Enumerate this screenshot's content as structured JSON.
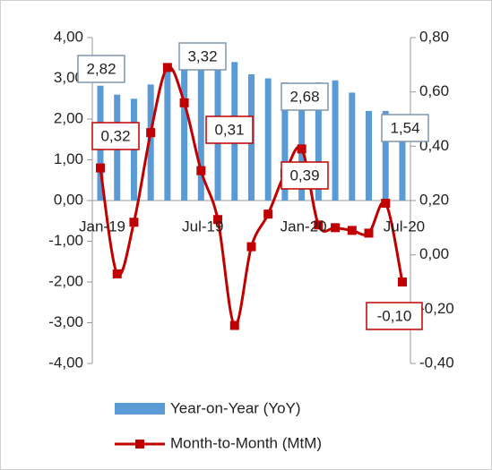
{
  "chart_data": {
    "type": "bar-line",
    "categories": [
      "Jan-19",
      null,
      null,
      null,
      null,
      null,
      "Jul-19",
      null,
      null,
      null,
      null,
      null,
      "Jan-20",
      null,
      null,
      null,
      null,
      null,
      "Jul-20"
    ],
    "series": [
      {
        "name": "Year-on-Year (YoY)",
        "type": "bar",
        "color": "#5b9bd5",
        "values": [
          2.82,
          2.6,
          2.5,
          2.85,
          3.32,
          3.3,
          3.3,
          3.35,
          3.4,
          3.1,
          3.0,
          2.9,
          2.68,
          2.9,
          2.95,
          2.65,
          2.2,
          2.2,
          1.54
        ],
        "value_labels": [
          "2,82",
          null,
          null,
          null,
          "3,32",
          null,
          null,
          null,
          null,
          null,
          null,
          null,
          "2,68",
          null,
          null,
          null,
          null,
          null,
          "1,54"
        ]
      },
      {
        "name": "Month-to-Month (MtM)",
        "type": "line",
        "axis": "y2",
        "color": "#c00000",
        "values": [
          0.32,
          -0.07,
          0.12,
          0.45,
          0.69,
          0.56,
          0.31,
          0.13,
          -0.26,
          0.03,
          0.15,
          0.3,
          0.39,
          0.11,
          0.1,
          0.09,
          0.08,
          0.19,
          -0.1
        ],
        "value_labels": [
          "0,32",
          null,
          null,
          null,
          null,
          null,
          "0,31",
          null,
          null,
          null,
          null,
          null,
          "0,39",
          null,
          null,
          null,
          null,
          null,
          "-0,10"
        ]
      }
    ],
    "ylim": [
      -4,
      4
    ],
    "yticks": [
      {
        "value": -4,
        "label": "-4,00"
      },
      {
        "value": -3,
        "label": "-3,00"
      },
      {
        "value": -2,
        "label": "-2,00"
      },
      {
        "value": -1,
        "label": "-1,00"
      },
      {
        "value": 0,
        "label": "0,00"
      },
      {
        "value": 1,
        "label": "1,00"
      },
      {
        "value": 2,
        "label": "2,00"
      },
      {
        "value": 3,
        "label": "3,00"
      },
      {
        "value": 4,
        "label": "4,00"
      }
    ],
    "y2lim": [
      -0.4,
      0.8
    ],
    "y2ticks": [
      {
        "value": -0.4,
        "label": "-0,40"
      },
      {
        "value": -0.2,
        "label": "-0,20"
      },
      {
        "value": 0,
        "label": "0,00"
      },
      {
        "value": 0.2,
        "label": "0,20"
      },
      {
        "value": 0.4,
        "label": "0,40"
      },
      {
        "value": 0.6,
        "label": "0,60"
      },
      {
        "value": 0.8,
        "label": "0,80"
      }
    ],
    "legend": "bottom"
  }
}
